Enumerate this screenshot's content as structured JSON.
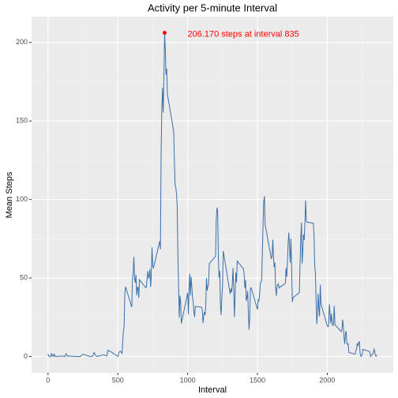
{
  "chart_data": {
    "type": "line",
    "title": "Activity per 5-minute Interval",
    "x_label": "Interval",
    "y_label": "Mean Steps",
    "x": [
      0,
      5,
      10,
      15,
      20,
      25,
      30,
      35,
      40,
      45,
      50,
      55,
      100,
      110,
      120,
      130,
      140,
      150,
      200,
      215,
      230,
      250,
      300,
      320,
      330,
      340,
      350,
      400,
      420,
      430,
      440,
      450,
      500,
      510,
      520,
      530,
      540,
      545,
      550,
      555,
      600,
      605,
      610,
      615,
      620,
      625,
      630,
      635,
      640,
      645,
      650,
      655,
      700,
      705,
      710,
      715,
      720,
      725,
      730,
      735,
      740,
      745,
      750,
      755,
      800,
      805,
      810,
      815,
      820,
      825,
      830,
      835,
      840,
      845,
      850,
      855,
      900,
      905,
      910,
      915,
      920,
      925,
      930,
      935,
      940,
      945,
      950,
      955,
      1000,
      1005,
      1010,
      1015,
      1020,
      1025,
      1030,
      1035,
      1040,
      1045,
      1050,
      1055,
      1100,
      1105,
      1110,
      1115,
      1120,
      1125,
      1130,
      1135,
      1140,
      1145,
      1150,
      1155,
      1200,
      1205,
      1210,
      1215,
      1220,
      1225,
      1230,
      1235,
      1240,
      1245,
      1250,
      1255,
      1300,
      1305,
      1310,
      1315,
      1320,
      1325,
      1330,
      1335,
      1340,
      1345,
      1350,
      1355,
      1400,
      1405,
      1410,
      1415,
      1420,
      1425,
      1430,
      1435,
      1440,
      1445,
      1450,
      1455,
      1500,
      1505,
      1510,
      1515,
      1520,
      1525,
      1530,
      1535,
      1540,
      1545,
      1550,
      1555,
      1600,
      1605,
      1610,
      1615,
      1620,
      1625,
      1630,
      1635,
      1640,
      1645,
      1650,
      1655,
      1700,
      1705,
      1710,
      1715,
      1720,
      1725,
      1730,
      1735,
      1740,
      1745,
      1750,
      1755,
      1800,
      1805,
      1810,
      1815,
      1820,
      1825,
      1830,
      1835,
      1840,
      1845,
      1850,
      1855,
      1900,
      1905,
      1910,
      1915,
      1920,
      1925,
      1930,
      1935,
      1940,
      1945,
      1950,
      1955,
      2000,
      2005,
      2010,
      2015,
      2020,
      2025,
      2030,
      2035,
      2040,
      2045,
      2050,
      2055,
      2100,
      2105,
      2110,
      2115,
      2120,
      2125,
      2130,
      2135,
      2140,
      2145,
      2150,
      2155,
      2200,
      2205,
      2210,
      2215,
      2220,
      2225,
      2230,
      2235,
      2240,
      2245,
      2250,
      2255,
      2300,
      2305,
      2310,
      2315,
      2320,
      2325,
      2330,
      2335,
      2340,
      2345,
      2350,
      2355
    ],
    "series": [
      {
        "name": "Mean Steps",
        "color": "#3b6fa8",
        "values": [
          1.7,
          0.3,
          0.1,
          0.2,
          0,
          2.1,
          0.5,
          0.9,
          0,
          1.5,
          0.3,
          0,
          0.3,
          0.2,
          0,
          1.8,
          0.2,
          0.3,
          0,
          0,
          0,
          1.5,
          0,
          0.2,
          2.6,
          0.9,
          0,
          1.2,
          0.3,
          4.1,
          3.5,
          3.1,
          0,
          3,
          3.3,
          2.1,
          16,
          19,
          39.5,
          44.5,
          31.5,
          49.3,
          53.8,
          63.5,
          50,
          47,
          52,
          39,
          44,
          44.2,
          37.4,
          49,
          43.8,
          44.4,
          50.5,
          54.5,
          49.9,
          50.9,
          55.7,
          44.3,
          52.3,
          69.5,
          57.8,
          56.2,
          73.4,
          68.2,
          129.4,
          157.5,
          171.2,
          155.4,
          177.3,
          206.17,
          195.9,
          179.6,
          183.4,
          167,
          143.5,
          124,
          109.1,
          108.1,
          103.7,
          95.97,
          66.2,
          45.2,
          24.8,
          38.8,
          34.98,
          21.06,
          40.6,
          26.98,
          42.4,
          52.7,
          38.9,
          50.8,
          44.3,
          37.4,
          34.7,
          28.3,
          25.1,
          31.9,
          31.4,
          29.7,
          21.3,
          25.5,
          28.4,
          26.5,
          33.4,
          49.98,
          42.03,
          44.6,
          46,
          59.2,
          63.9,
          87.7,
          94.8,
          92.8,
          63.4,
          50.2,
          54.5,
          32.4,
          26.5,
          37.7,
          45.1,
          67.3,
          42.3,
          39.9,
          43.3,
          40.98,
          46.2,
          56.4,
          42.75,
          25.1,
          39.96,
          53.5,
          47.3,
          60.8,
          55.75,
          51.96,
          43.6,
          48.7,
          35.5,
          37.5,
          41.8,
          27.5,
          17.1,
          26.1,
          43.6,
          43.8,
          30,
          36.1,
          35.5,
          38.8,
          45.96,
          47.75,
          48.1,
          65.3,
          82.9,
          98.7,
          102.1,
          83.96,
          62.1,
          64.1,
          74.5,
          63.2,
          56.9,
          59.8,
          43.9,
          38.6,
          44.7,
          45.5,
          46.2,
          43.7,
          46.6,
          56.3,
          50.7,
          61.2,
          72.7,
          78.9,
          68.9,
          59.7,
          75.1,
          56.5,
          34.8,
          37.5,
          40.7,
          58,
          74.7,
          85.3,
          59.3,
          67.8,
          77.7,
          74.2,
          85.3,
          99.5,
          86.6,
          85.6,
          84.9,
          77.8,
          58,
          53.4,
          36.3,
          20.7,
          27.4,
          40,
          30.2,
          25.5,
          45.7,
          33.5,
          19.6,
          19,
          19.3,
          33.3,
          26.8,
          21.2,
          27.3,
          21.3,
          19.5,
          21.3,
          32.3,
          20.2,
          15.9,
          17.2,
          23.5,
          19.2,
          12.5,
          8,
          14.7,
          16.3,
          8.7,
          7.8,
          8.1,
          2.6,
          1.5,
          3.7,
          4.8,
          8.5,
          7.1,
          8.7,
          9.8,
          2.2,
          0.3,
          0.1,
          1.6,
          4.6,
          3.3,
          2.8,
          0,
          0.8,
          0.96,
          1.6,
          2.6,
          4.7,
          3.3,
          0.6,
          0.2,
          1.1
        ]
      }
    ],
    "annotation": {
      "text": "206.170 steps at interval 835",
      "x": 835,
      "y": 206.17,
      "color": "red"
    },
    "xlim": [
      -117.75,
      2472.75
    ],
    "xticks": [
      0,
      500,
      1000,
      1500,
      2000
    ],
    "ylim": [
      -10.31,
      216.48
    ],
    "yticks": [
      0,
      50,
      100,
      150,
      200
    ],
    "grid": true
  }
}
